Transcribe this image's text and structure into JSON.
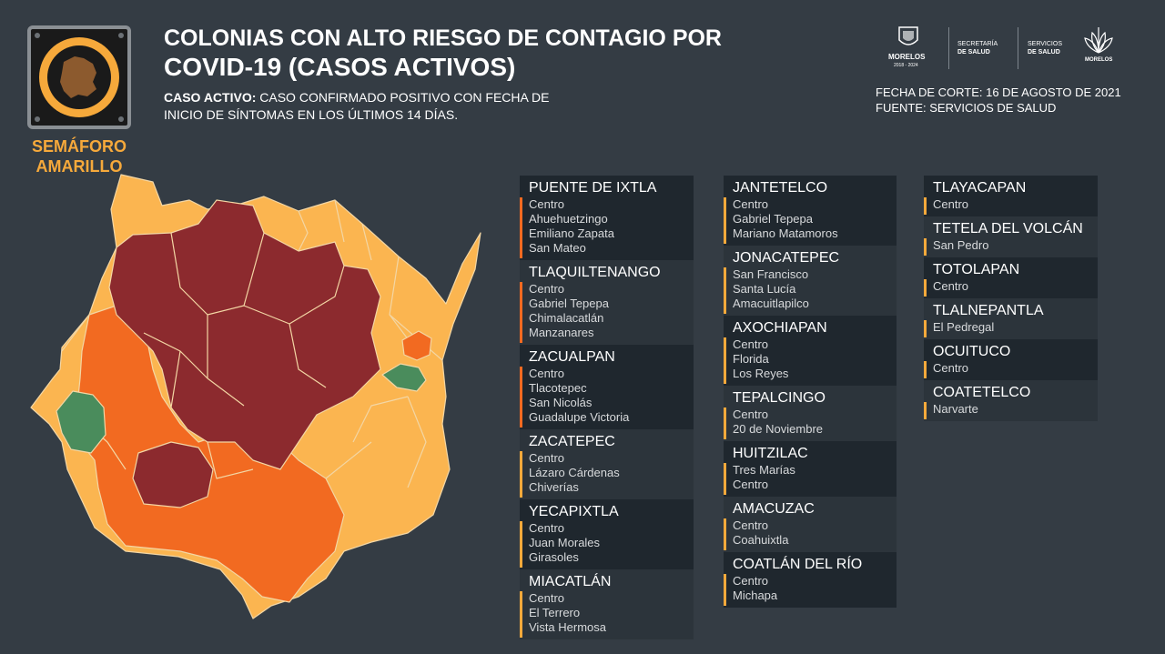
{
  "semaforo": {
    "label_line1": "SEMÁFORO",
    "label_line2": "AMARILLO"
  },
  "header": {
    "title_line1": "COLONIAS CON ALTO RIESGO DE CONTAGIO POR",
    "title_line2": "COVID-19 (CASOS ACTIVOS)",
    "definition_term": "CASO ACTIVO:",
    "definition_line1": "CASO CONFIRMADO POSITIVO CON FECHA DE",
    "definition_line2": "INICIO DE SÍNTOMAS EN LOS ÚLTIMOS 14 DÍAS.",
    "fecha_corte": "FECHA DE CORTE: 16 DE AGOSTO DE 2021",
    "fuente": "FUENTE: SERVICIOS DE SALUD"
  },
  "logos": {
    "morelos": "MORELOS",
    "morelos_years": "2018 - 2024",
    "secretaria_1": "SECRETARÍA",
    "secretaria_2": "DE SALUD",
    "servicios_1": "SERVICIOS",
    "servicios_2": "DE SALUD",
    "morelos_right": "MORELOS"
  },
  "colors": {
    "background": "#343c44",
    "yellow": "#fbb550",
    "orange": "#f26a21",
    "red": "#8c2a2e",
    "green": "#4a8c5c",
    "accent": "#f6a93b"
  },
  "columns": [
    [
      {
        "municipio": "PUENTE DE IXTLA",
        "color": "orange",
        "colonias": [
          "Centro",
          "Ahuehuetzingo",
          "Emiliano Zapata",
          "San Mateo"
        ]
      },
      {
        "municipio": "TLAQUILTENANGO",
        "color": "orange",
        "colonias": [
          "Centro",
          "Gabriel Tepepa",
          "Chimalacatlán",
          "Manzanares"
        ]
      },
      {
        "municipio": "ZACUALPAN",
        "color": "orange",
        "colonias": [
          "Centro",
          "Tlacotepec",
          "San Nicolás",
          "Guadalupe Victoria"
        ]
      },
      {
        "municipio": "ZACATEPEC",
        "color": "yellow",
        "colonias": [
          "Centro",
          "Lázaro Cárdenas",
          "Chiverías"
        ]
      },
      {
        "municipio": "YECAPIXTLA",
        "color": "yellow",
        "colonias": [
          "Centro",
          "Juan Morales",
          "Girasoles"
        ]
      },
      {
        "municipio": "MIACATLÁN",
        "color": "yellow",
        "colonias": [
          "Centro",
          "El Terrero",
          "Vista Hermosa"
        ]
      }
    ],
    [
      {
        "municipio": "JANTETELCO",
        "color": "yellow",
        "colonias": [
          "Centro",
          "Gabriel Tepepa",
          "Mariano Matamoros"
        ]
      },
      {
        "municipio": "JONACATEPEC",
        "color": "yellow",
        "colonias": [
          "San Francisco",
          "Santa Lucía",
          "Amacuitlapilco"
        ]
      },
      {
        "municipio": "AXOCHIAPAN",
        "color": "yellow",
        "colonias": [
          "Centro",
          "Florida",
          "Los Reyes"
        ]
      },
      {
        "municipio": "TEPALCINGO",
        "color": "yellow",
        "colonias": [
          "Centro",
          "20 de Noviembre"
        ]
      },
      {
        "municipio": "HUITZILAC",
        "color": "yellow",
        "colonias": [
          "Tres Marías",
          "Centro"
        ]
      },
      {
        "municipio": "AMACUZAC",
        "color": "yellow",
        "colonias": [
          "Centro",
          "Coahuixtla"
        ]
      },
      {
        "municipio": "COATLÁN DEL RÍO",
        "color": "yellow",
        "colonias": [
          "Centro",
          "Michapa"
        ]
      }
    ],
    [
      {
        "municipio": "TLAYACAPAN",
        "color": "yellow",
        "colonias": [
          "Centro"
        ]
      },
      {
        "municipio": "TETELA DEL VOLCÁN",
        "color": "yellow",
        "colonias": [
          "San Pedro"
        ]
      },
      {
        "municipio": "TOTOLAPAN",
        "color": "yellow",
        "colonias": [
          "Centro"
        ]
      },
      {
        "municipio": "TLALNEPANTLA",
        "color": "yellow",
        "colonias": [
          "El Pedregal"
        ]
      },
      {
        "municipio": "OCUITUCO",
        "color": "yellow",
        "colonias": [
          "Centro"
        ]
      },
      {
        "municipio": "COATETELCO",
        "color": "yellow",
        "colonias": [
          "Narvarte"
        ]
      }
    ]
  ]
}
